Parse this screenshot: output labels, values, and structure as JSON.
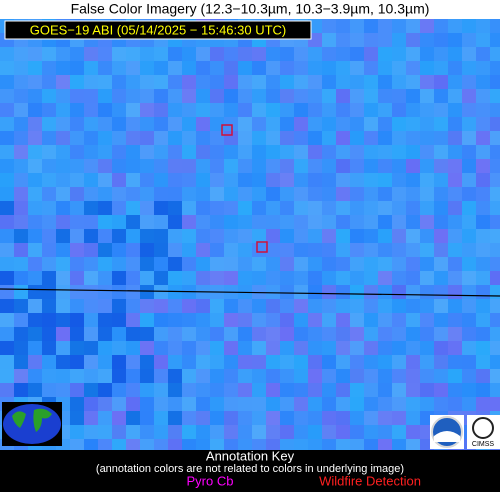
{
  "header": {
    "title": "False Color Imagery (12.3−10.3µm, 10.3−3.9µm, 10.3µm)",
    "subtitle": "GOES−19 ABI (05/14/2025 − 15:46:30 UTC)"
  },
  "annotation_key": {
    "title": "Annotation Key",
    "note": "(annotation colors are not related to colors in underlying image)",
    "items": [
      "Pyro Cb",
      "Wildfire Detection"
    ]
  }
}
